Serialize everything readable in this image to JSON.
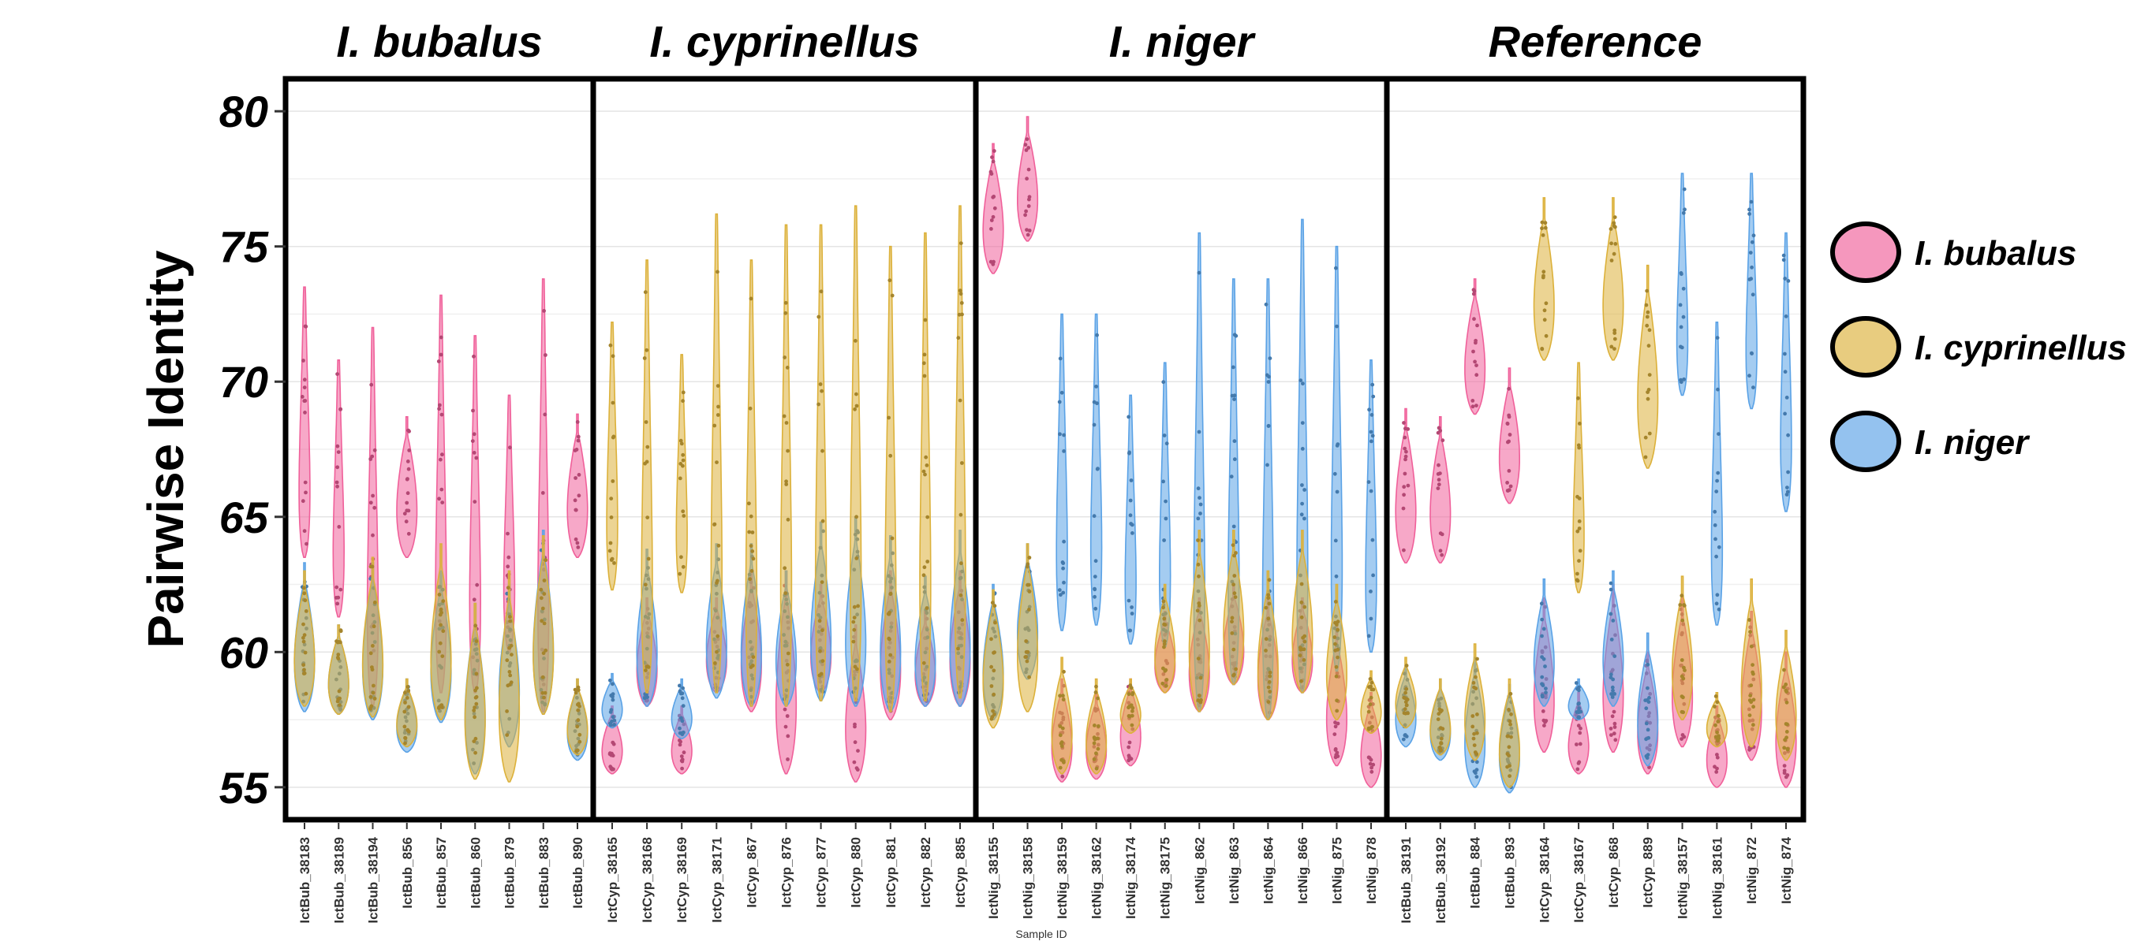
{
  "chart_data": {
    "type": "violin",
    "ylabel": "Pairwise Identity",
    "xlabel": "Sample ID",
    "ylim": [
      53.8,
      81.2
    ],
    "yticks": [
      55,
      60,
      65,
      70,
      75,
      80
    ],
    "grid": true,
    "legend_position": "right",
    "colors": {
      "I. bubalus": "#f0609a",
      "I. cyprinellus": "#dcb13a",
      "I. niger": "#5aa2e6"
    },
    "legend": [
      "I. bubalus",
      "I. cyprinellus",
      "I. niger"
    ],
    "panels": [
      {
        "title": "I. bubalus",
        "samples": [
          {
            "id": "IctBub_38183",
            "bub": [
              63.5,
              73.5
            ],
            "cyp": [
              58,
              63
            ],
            "nig": [
              57.8,
              63.3
            ]
          },
          {
            "id": "IctBub_38189",
            "bub": [
              61.3,
              70.8
            ],
            "cyp": [
              57.7,
              61
            ],
            "nig": [
              57.7,
              61
            ]
          },
          {
            "id": "IctBub_38194",
            "bub": [
              58,
              72
            ],
            "cyp": [
              57.6,
              63.5
            ],
            "nig": [
              57.5,
              63.3
            ]
          },
          {
            "id": "IctBub_856",
            "bub": [
              63.5,
              68.7
            ],
            "cyp": [
              56.5,
              59
            ],
            "nig": [
              56.3,
              59
            ]
          },
          {
            "id": "IctBub_857",
            "bub": [
              58.5,
              73.2
            ],
            "cyp": [
              57.5,
              64
            ],
            "nig": [
              57.4,
              63
            ]
          },
          {
            "id": "IctBub_860",
            "bub": [
              58.5,
              71.7
            ],
            "cyp": [
              55.3,
              61.8
            ],
            "nig": [
              55.5,
              61.8
            ]
          },
          {
            "id": "IctBub_879",
            "bub": [
              60,
              69.5
            ],
            "cyp": [
              55.2,
              63
            ],
            "nig": [
              56.5,
              62.5
            ]
          },
          {
            "id": "IctBub_883",
            "bub": [
              57.8,
              73.8
            ],
            "cyp": [
              57.7,
              64.3
            ],
            "nig": [
              57.7,
              64.5
            ]
          },
          {
            "id": "IctBub_890",
            "bub": [
              63.5,
              68.8
            ],
            "cyp": [
              56.2,
              59
            ],
            "nig": [
              56,
              59
            ]
          }
        ]
      },
      {
        "title": "I. cyprinellus",
        "samples": [
          {
            "id": "IctCyp_38165",
            "bub": [
              55.5,
              58
            ],
            "cyp": [
              62.3,
              72.2
            ],
            "nig": [
              57.2,
              59.2
            ]
          },
          {
            "id": "IctCyp_38168",
            "bub": [
              58,
              62
            ],
            "cyp": [
              58.5,
              74.5
            ],
            "nig": [
              58,
              63.8
            ]
          },
          {
            "id": "IctCyp_38169",
            "bub": [
              55.5,
              58
            ],
            "cyp": [
              62.2,
              71
            ],
            "nig": [
              56.8,
              59
            ]
          },
          {
            "id": "IctCyp_38171",
            "bub": [
              58.5,
              62
            ],
            "cyp": [
              58.5,
              76.2
            ],
            "nig": [
              58.3,
              64
            ]
          },
          {
            "id": "IctCyp_867",
            "bub": [
              57.8,
              63
            ],
            "cyp": [
              58,
              74.5
            ],
            "nig": [
              58,
              64
            ]
          },
          {
            "id": "IctCyp_876",
            "bub": [
              55.5,
              63
            ],
            "cyp": [
              58,
              75.8
            ],
            "nig": [
              58,
              63
            ]
          },
          {
            "id": "IctCyp_877",
            "bub": [
              58.5,
              62.5
            ],
            "cyp": [
              58.2,
              75.8
            ],
            "nig": [
              58.2,
              64.8
            ]
          },
          {
            "id": "IctCyp_880",
            "bub": [
              55.2,
              61
            ],
            "cyp": [
              58.2,
              76.5
            ],
            "nig": [
              58,
              65
            ]
          },
          {
            "id": "IctCyp_881",
            "bub": [
              57.5,
              63
            ],
            "cyp": [
              57.8,
              75
            ],
            "nig": [
              57.8,
              64.3
            ]
          },
          {
            "id": "IctCyp_882",
            "bub": [
              58,
              61.5
            ],
            "cyp": [
              58.2,
              75.5
            ],
            "nig": [
              58,
              62.8
            ]
          },
          {
            "id": "IctCyp_885",
            "bub": [
              58,
              63
            ],
            "cyp": [
              58.3,
              76.5
            ],
            "nig": [
              58,
              64.5
            ]
          }
        ]
      },
      {
        "title": "I. niger",
        "samples": [
          {
            "id": "IctNig_38155",
            "bub": [
              74,
              78.8
            ],
            "cyp": [
              57.2,
              62.3
            ],
            "nig": [
              57.5,
              62.5
            ]
          },
          {
            "id": "IctNig_38158",
            "bub": [
              75.2,
              79.8
            ],
            "cyp": [
              57.8,
              64
            ],
            "nig": [
              59,
              64
            ]
          },
          {
            "id": "IctNig_38159",
            "bub": [
              55.2,
              59
            ],
            "cyp": [
              55.5,
              59.8
            ],
            "nig": [
              60.8,
              72.5
            ]
          },
          {
            "id": "IctNig_38162",
            "bub": [
              55.3,
              58.5
            ],
            "cyp": [
              55.5,
              59
            ],
            "nig": [
              61,
              72.5
            ]
          },
          {
            "id": "IctNig_38174",
            "bub": [
              55.8,
              59
            ],
            "cyp": [
              57,
              59
            ],
            "nig": [
              60.3,
              69.5
            ]
          },
          {
            "id": "IctNig_38175",
            "bub": [
              58.5,
              61.5
            ],
            "cyp": [
              58.5,
              62.5
            ],
            "nig": [
              60.2,
              70.7
            ]
          },
          {
            "id": "IctNig_862",
            "bub": [
              57.8,
              62
            ],
            "cyp": [
              57.8,
              64.5
            ],
            "nig": [
              57.8,
              75.5
            ]
          },
          {
            "id": "IctNig_863",
            "bub": [
              58.8,
              62.5
            ],
            "cyp": [
              58.8,
              64.5
            ],
            "nig": [
              58.8,
              73.8
            ]
          },
          {
            "id": "IctNig_864",
            "bub": [
              57.5,
              62
            ],
            "cyp": [
              57.5,
              63
            ],
            "nig": [
              57.5,
              73.8
            ]
          },
          {
            "id": "IctNig_866",
            "bub": [
              58.5,
              62
            ],
            "cyp": [
              58.5,
              64.5
            ],
            "nig": [
              58.5,
              76
            ]
          },
          {
            "id": "IctNig_875",
            "bub": [
              55.8,
              61
            ],
            "cyp": [
              57.5,
              62.5
            ],
            "nig": [
              59.3,
              75
            ]
          },
          {
            "id": "IctNig_878",
            "bub": [
              55,
              58.5
            ],
            "cyp": [
              57,
              59.3
            ],
            "nig": [
              60,
              70.8
            ]
          }
        ]
      },
      {
        "title": "Reference",
        "samples": [
          {
            "id": "IctBub_38191",
            "bub": [
              63.3,
              69
            ],
            "cyp": [
              57.2,
              59.8
            ],
            "nig": [
              56.5,
              59.5
            ]
          },
          {
            "id": "IctBub_38192",
            "bub": [
              63.3,
              68.7
            ],
            "cyp": [
              56.2,
              59
            ],
            "nig": [
              56,
              59
            ]
          },
          {
            "id": "IctBub_884",
            "bub": [
              68.8,
              73.8
            ],
            "cyp": [
              56,
              60.3
            ],
            "nig": [
              55,
              59.8
            ]
          },
          {
            "id": "IctBub_893",
            "bub": [
              65.5,
              70.5
            ],
            "cyp": [
              55,
              59
            ],
            "nig": [
              54.8,
              58.8
            ]
          },
          {
            "id": "IctCyp_38164",
            "bub": [
              56.3,
              62
            ],
            "cyp": [
              70.8,
              76.8
            ],
            "nig": [
              58,
              62.7
            ]
          },
          {
            "id": "IctCyp_38167",
            "bub": [
              55.5,
              58.5
            ],
            "cyp": [
              62.2,
              70.7
            ],
            "nig": [
              57.5,
              59
            ]
          },
          {
            "id": "IctCyp_868",
            "bub": [
              56.3,
              62.5
            ],
            "cyp": [
              70.8,
              76.8
            ],
            "nig": [
              58,
              63
            ]
          },
          {
            "id": "IctCyp_889",
            "bub": [
              55.5,
              60
            ],
            "cyp": [
              66.8,
              74.3
            ],
            "nig": [
              55.8,
              60.7
            ]
          },
          {
            "id": "IctNig_38157",
            "bub": [
              56.5,
              62
            ],
            "cyp": [
              57.5,
              62.8
            ],
            "nig": [
              69.5,
              77.7
            ]
          },
          {
            "id": "IctNig_38161",
            "bub": [
              55,
              58
            ],
            "cyp": [
              56.5,
              58.5
            ],
            "nig": [
              61,
              72.2
            ]
          },
          {
            "id": "IctNig_872",
            "bub": [
              56,
              61.5
            ],
            "cyp": [
              56.5,
              62.7
            ],
            "nig": [
              69,
              77.7
            ]
          },
          {
            "id": "IctNig_874",
            "bub": [
              55,
              60
            ],
            "cyp": [
              56,
              60.8
            ],
            "nig": [
              65.2,
              75.5
            ]
          }
        ]
      }
    ]
  }
}
